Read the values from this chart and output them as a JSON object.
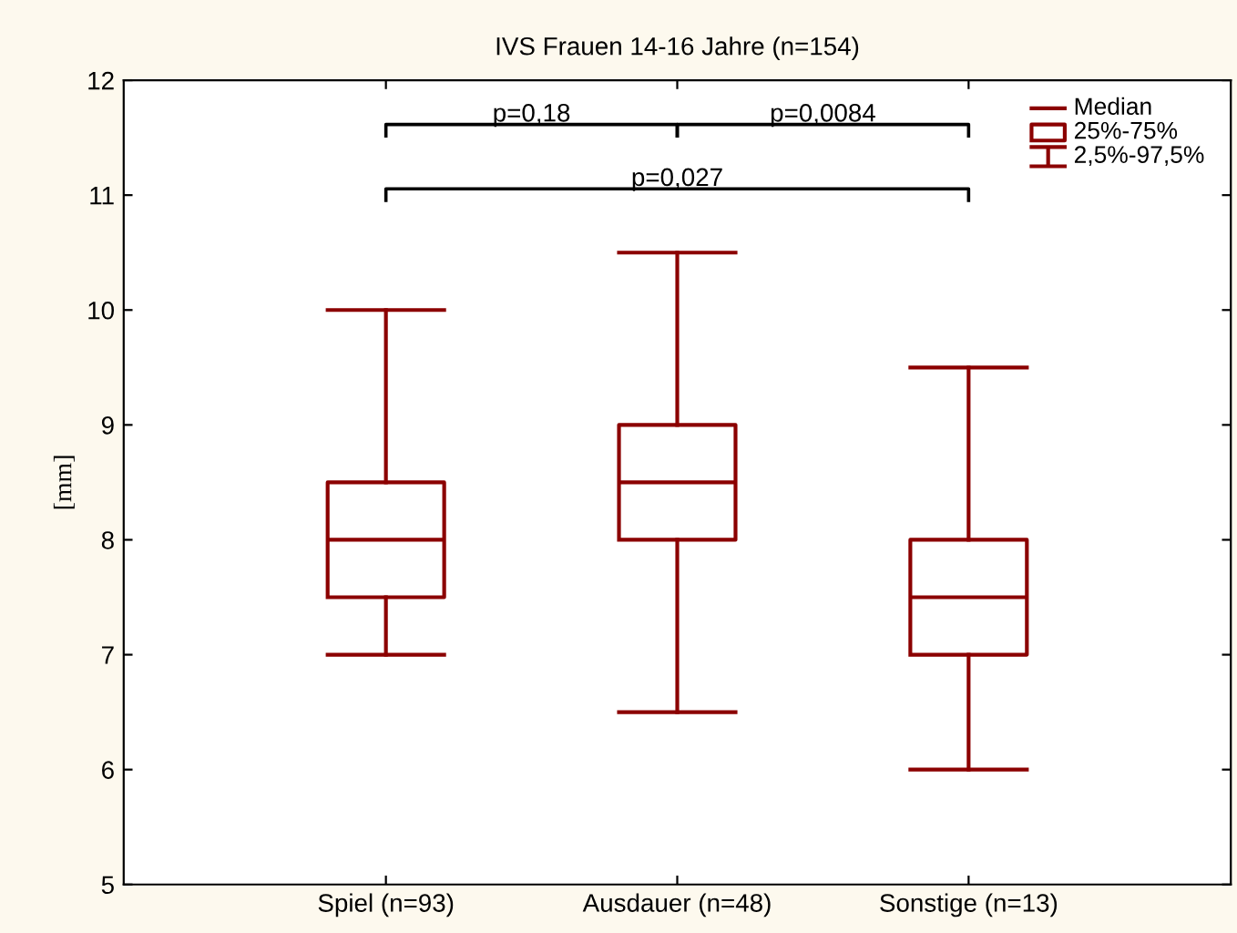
{
  "chart_data": {
    "type": "box",
    "title": "IVS Frauen 14-16 Jahre (n=154)",
    "ylabel": "[mm]",
    "categories": [
      "Spiel (n=93)",
      "Ausdauer (n=48)",
      "Sonstige (n=13)"
    ],
    "series": [
      {
        "color": "#8b0000",
        "boxes": [
          {
            "low": 7,
            "q1": 7.5,
            "median": 8,
            "q3": 8.5,
            "high": 10
          },
          {
            "low": 6.5,
            "q1": 8,
            "median": 8.5,
            "q3": 9,
            "high": 10.5
          },
          {
            "low": 6,
            "q1": 7,
            "median": 7.5,
            "q3": 8,
            "high": 9.5
          }
        ]
      }
    ],
    "ylim": [
      5,
      12
    ],
    "yticks": [
      5,
      6,
      7,
      8,
      9,
      10,
      11,
      12
    ],
    "grid": false,
    "annotations": [
      "p=0,18",
      "p=0,0084",
      "p=0,027",
      "Median",
      "25%-75%",
      "2,5%-97,5%"
    ]
  }
}
